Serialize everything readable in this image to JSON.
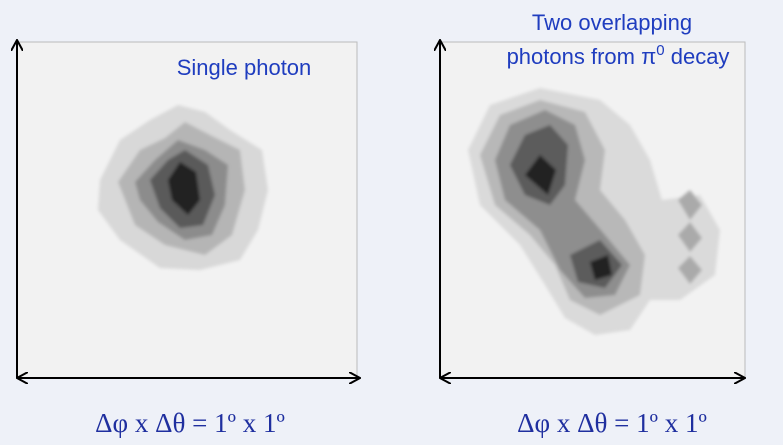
{
  "panels": [
    {
      "title": "Single photon",
      "axis_label": "Δφ x Δθ = 1º x 1º"
    },
    {
      "title_line1": "Two overlapping",
      "title_line2": "photons from π",
      "title_sup": "0",
      "title_end": " decay",
      "axis_label": "Δφ x Δθ = 1º x 1º"
    }
  ]
}
